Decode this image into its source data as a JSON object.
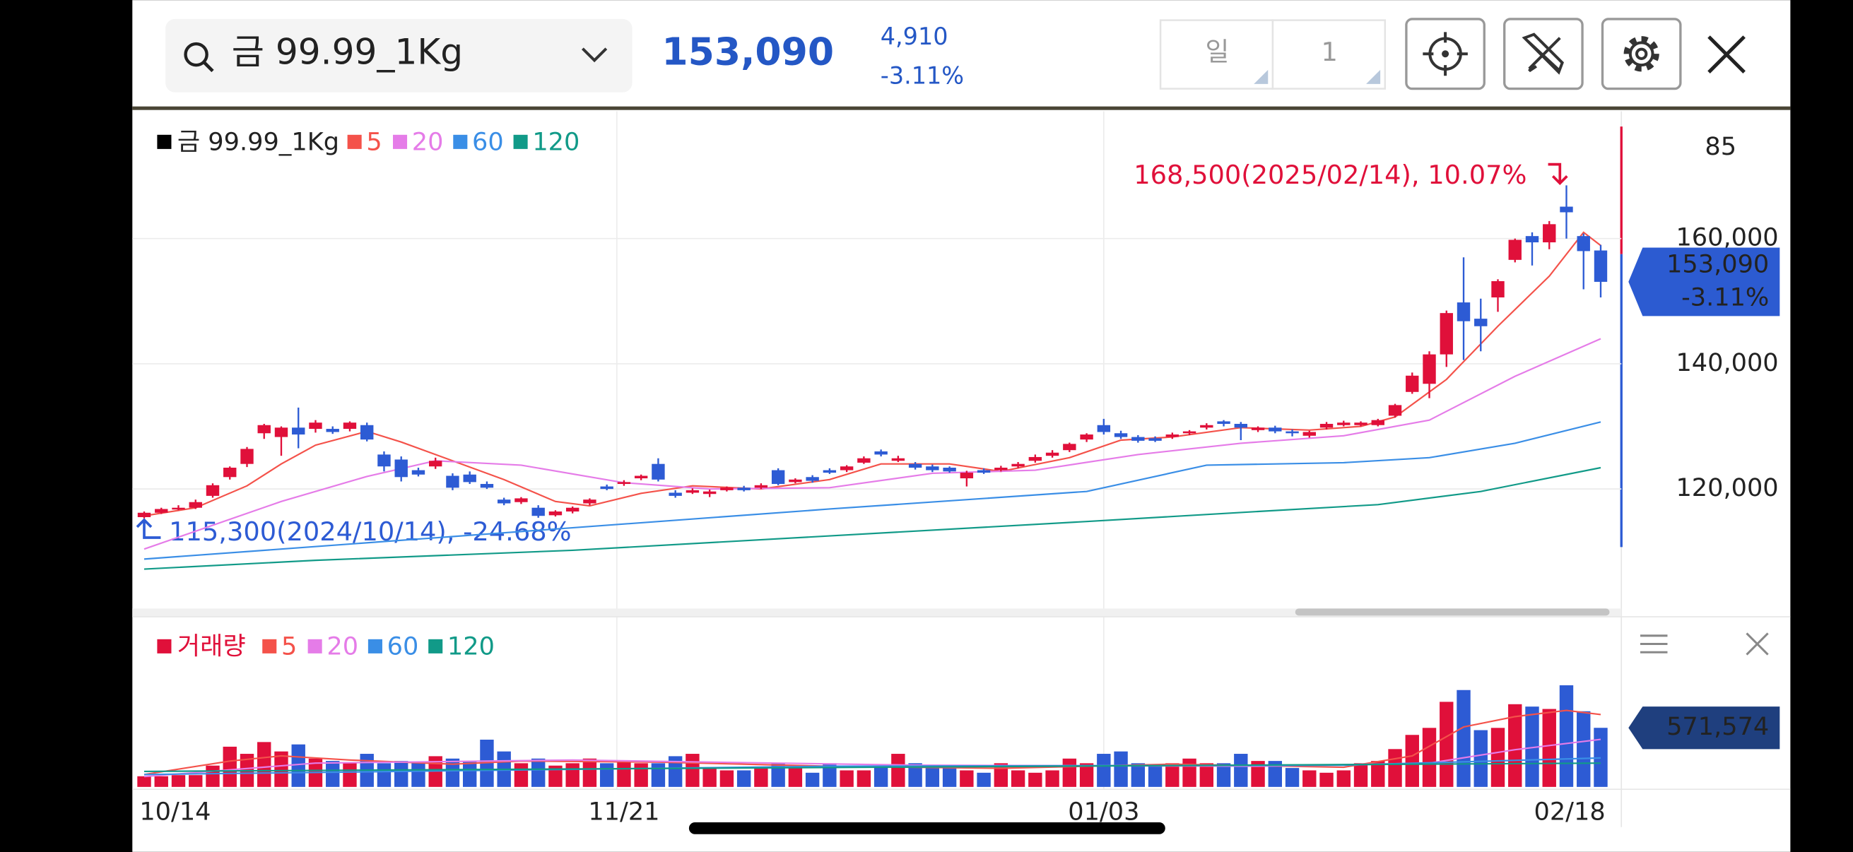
{
  "header": {
    "search": "금 99.99_1Kg",
    "price": "153,090",
    "change": "4,910",
    "change_pct": "-3.11%",
    "period": "일",
    "period_n": "1"
  },
  "chart_data": {
    "type": "candlestick",
    "name": "금 99.99_1Kg",
    "top_label": "85",
    "ylim": [
      100900,
      179600
    ],
    "yticks": [
      {
        "value": 120000,
        "label": "120,000"
      },
      {
        "value": 140000,
        "label": "140,000"
      },
      {
        "value": 160000,
        "label": "160,000"
      }
    ],
    "xticks": [
      {
        "value": 0,
        "label": "10/14"
      },
      {
        "value": 28,
        "label": "11/21"
      },
      {
        "value": 56,
        "label": "01/03"
      },
      {
        "value": 85,
        "label": "02/18"
      }
    ],
    "up_color": "#e0103a",
    "down_color": "#2d5bd4",
    "annotations": [
      {
        "text": "168,500(2025/02/14), 10.07%",
        "color": "#e0103a"
      },
      {
        "text": "115,300(2024/10/14), -24.68%",
        "color": "#2d5bd4"
      }
    ],
    "price_badge": {
      "value": 153090,
      "label": "153,090",
      "pct": "-3.11%"
    },
    "candles": [
      [
        115500,
        116400,
        115300,
        116200
      ],
      [
        116200,
        117000,
        116000,
        116800
      ],
      [
        116800,
        117400,
        116600,
        117000
      ],
      [
        117000,
        118300,
        116800,
        117900
      ],
      [
        118900,
        120900,
        118600,
        120600
      ],
      [
        121900,
        123600,
        121500,
        123400
      ],
      [
        124000,
        126700,
        123500,
        126400
      ],
      [
        128900,
        130400,
        128000,
        130200
      ],
      [
        128300,
        130000,
        125300,
        129800
      ],
      [
        129800,
        133000,
        126500,
        128700
      ],
      [
        129600,
        131000,
        129000,
        130600
      ],
      [
        129600,
        130000,
        128800,
        129100
      ],
      [
        129600,
        130800,
        129200,
        130600
      ],
      [
        130200,
        130600,
        127600,
        127900
      ],
      [
        125500,
        126000,
        122800,
        123600
      ],
      [
        124700,
        125200,
        121200,
        121900
      ],
      [
        123000,
        123400,
        122000,
        122300
      ],
      [
        123600,
        125000,
        123200,
        124500
      ],
      [
        122100,
        122500,
        119800,
        120200
      ],
      [
        122300,
        122800,
        120800,
        121100
      ],
      [
        120800,
        121200,
        120000,
        120200
      ],
      [
        118300,
        118600,
        117400,
        117700
      ],
      [
        117900,
        118700,
        117600,
        118500
      ],
      [
        117000,
        117400,
        115400,
        115700
      ],
      [
        115800,
        116600,
        115600,
        116400
      ],
      [
        116400,
        117200,
        116100,
        117000
      ],
      [
        117700,
        118500,
        117400,
        118300
      ],
      [
        120400,
        120700,
        119800,
        120000
      ],
      [
        120800,
        121400,
        120500,
        121100
      ],
      [
        121700,
        122300,
        121400,
        122100
      ],
      [
        124000,
        124900,
        121200,
        121500
      ],
      [
        119400,
        119800,
        118600,
        118900
      ],
      [
        119400,
        120100,
        119200,
        119800
      ],
      [
        119200,
        119900,
        118700,
        119600
      ],
      [
        119800,
        120400,
        119600,
        120200
      ],
      [
        120200,
        120500,
        119600,
        119800
      ],
      [
        120200,
        120900,
        120000,
        120600
      ],
      [
        123000,
        123300,
        120600,
        120800
      ],
      [
        121100,
        121700,
        120900,
        121500
      ],
      [
        121900,
        122200,
        121000,
        121300
      ],
      [
        123000,
        123300,
        122400,
        122600
      ],
      [
        123000,
        123800,
        122700,
        123600
      ],
      [
        124200,
        125200,
        124000,
        124900
      ],
      [
        126000,
        126300,
        125200,
        125500
      ],
      [
        124500,
        125300,
        124300,
        124900
      ],
      [
        124000,
        124300,
        123100,
        123400
      ],
      [
        123600,
        123900,
        122700,
        123000
      ],
      [
        123400,
        123600,
        122600,
        122800
      ],
      [
        121700,
        122900,
        120400,
        122600
      ],
      [
        123000,
        123300,
        122400,
        122600
      ],
      [
        123000,
        123700,
        122800,
        123400
      ],
      [
        123600,
        124300,
        123300,
        124000
      ],
      [
        124500,
        125500,
        124200,
        125100
      ],
      [
        125300,
        126200,
        125000,
        125800
      ],
      [
        126200,
        127400,
        125900,
        127200
      ],
      [
        127900,
        128900,
        127500,
        128700
      ],
      [
        130200,
        131200,
        128700,
        129100
      ],
      [
        128900,
        129300,
        128000,
        128300
      ],
      [
        128300,
        128600,
        127400,
        127700
      ],
      [
        128100,
        128400,
        127500,
        127700
      ],
      [
        128300,
        129000,
        128000,
        128700
      ],
      [
        128900,
        129400,
        128600,
        129200
      ],
      [
        129800,
        130500,
        129500,
        130200
      ],
      [
        130800,
        131000,
        130000,
        130400
      ],
      [
        130400,
        130700,
        127800,
        129800
      ],
      [
        129400,
        130000,
        129100,
        129800
      ],
      [
        129800,
        130100,
        128900,
        129200
      ],
      [
        129200,
        129500,
        128400,
        128900
      ],
      [
        128500,
        129300,
        128200,
        129100
      ],
      [
        129800,
        130700,
        129500,
        130400
      ],
      [
        130200,
        130900,
        130000,
        130600
      ],
      [
        130200,
        130800,
        130000,
        130600
      ],
      [
        130200,
        131200,
        130000,
        131000
      ],
      [
        131700,
        133600,
        131400,
        133400
      ],
      [
        135500,
        138600,
        135200,
        138100
      ],
      [
        136800,
        142000,
        134500,
        141500
      ],
      [
        141500,
        148500,
        139500,
        148100
      ],
      [
        149800,
        157000,
        140600,
        146800
      ],
      [
        147200,
        150400,
        142000,
        146000
      ],
      [
        150600,
        153500,
        148300,
        153200
      ],
      [
        156600,
        160000,
        156200,
        159800
      ],
      [
        160400,
        161000,
        155700,
        159400
      ],
      [
        159400,
        162800,
        158300,
        162300
      ],
      [
        165100,
        168500,
        160000,
        164200
      ],
      [
        160400,
        160800,
        151900,
        158000
      ],
      [
        158100,
        159000,
        150600,
        153090
      ]
    ],
    "series": [
      {
        "name": "5",
        "color": "#f4524a",
        "x": [
          0,
          3,
          6,
          8,
          10,
          13,
          15,
          18,
          21,
          24,
          26,
          29,
          32,
          36,
          40,
          43,
          47,
          50,
          54,
          57,
          60,
          64,
          68,
          71,
          73,
          76,
          79,
          82,
          84,
          85
        ],
        "values": [
          115700,
          117000,
          120500,
          124000,
          127000,
          129200,
          127500,
          124500,
          121500,
          118000,
          117300,
          119300,
          120500,
          120000,
          121500,
          124000,
          124000,
          122800,
          125000,
          127800,
          128300,
          129800,
          129400,
          130000,
          131500,
          137500,
          146000,
          154000,
          161000,
          158900
        ]
      },
      {
        "name": "20",
        "color": "#e57ce8",
        "x": [
          0,
          8,
          13,
          17,
          22,
          28,
          33,
          40,
          46,
          52,
          58,
          64,
          70,
          75,
          80,
          85
        ],
        "values": [
          110400,
          118000,
          122000,
          124500,
          123800,
          121000,
          120000,
          120200,
          122500,
          123000,
          125500,
          127300,
          128500,
          131000,
          138000,
          144000
        ]
      },
      {
        "name": "60",
        "color": "#3a8ee6",
        "x": [
          0,
          20,
          40,
          55,
          62,
          70,
          75,
          80,
          85
        ],
        "values": [
          108800,
          112800,
          116800,
          119600,
          123800,
          124200,
          125000,
          127300,
          130700
        ]
      },
      {
        "name": "120",
        "color": "#119a88",
        "x": [
          0,
          10,
          25,
          40,
          55,
          65,
          72,
          78,
          85
        ],
        "values": [
          107200,
          108600,
          110200,
          112500,
          114800,
          116400,
          117500,
          119600,
          123400
        ]
      }
    ],
    "volume": {
      "name": "거래량",
      "color": "#e0103a",
      "ylim": [
        0,
        1000000
      ],
      "badge": {
        "value": 571574,
        "label": "571,574"
      },
      "values": [
        103000,
        103000,
        114000,
        114000,
        206000,
        389000,
        320000,
        434000,
        343000,
        411000,
        274000,
        251000,
        229000,
        320000,
        229000,
        251000,
        229000,
        297000,
        274000,
        251000,
        457000,
        343000,
        229000,
        274000,
        206000,
        229000,
        274000,
        229000,
        251000,
        229000,
        229000,
        297000,
        320000,
        183000,
        160000,
        160000,
        183000,
        229000,
        183000,
        137000,
        229000,
        160000,
        160000,
        206000,
        320000,
        229000,
        206000,
        183000,
        160000,
        137000,
        229000,
        160000,
        137000,
        160000,
        274000,
        229000,
        320000,
        343000,
        229000,
        206000,
        229000,
        274000,
        229000,
        229000,
        320000,
        251000,
        251000,
        183000,
        160000,
        137000,
        160000,
        229000,
        251000,
        366000,
        503000,
        571000,
        823000,
        937000,
        549000,
        571000,
        800000,
        777000,
        754000,
        983000,
        732000,
        571574
      ],
      "series": [
        {
          "name": "5",
          "color": "#f4524a",
          "x": [
            0,
            5,
            8,
            12,
            18,
            22,
            30,
            40,
            50,
            60,
            70,
            74,
            77,
            80,
            83,
            85
          ],
          "values": [
            120000,
            250000,
            300000,
            260000,
            220000,
            250000,
            240000,
            200000,
            180000,
            220000,
            190000,
            300000,
            580000,
            680000,
            740000,
            700000
          ]
        },
        {
          "name": "20",
          "color": "#e57ce8",
          "x": [
            0,
            10,
            25,
            45,
            65,
            75,
            80,
            85
          ],
          "values": [
            100000,
            230000,
            260000,
            210000,
            200000,
            230000,
            360000,
            460000
          ]
        },
        {
          "name": "60",
          "color": "#3a8ee6",
          "x": [
            0,
            40,
            70,
            85
          ],
          "values": [
            120000,
            200000,
            210000,
            280000
          ]
        },
        {
          "name": "120",
          "color": "#119a88",
          "x": [
            0,
            85
          ],
          "values": [
            150000,
            230000
          ]
        }
      ]
    }
  }
}
